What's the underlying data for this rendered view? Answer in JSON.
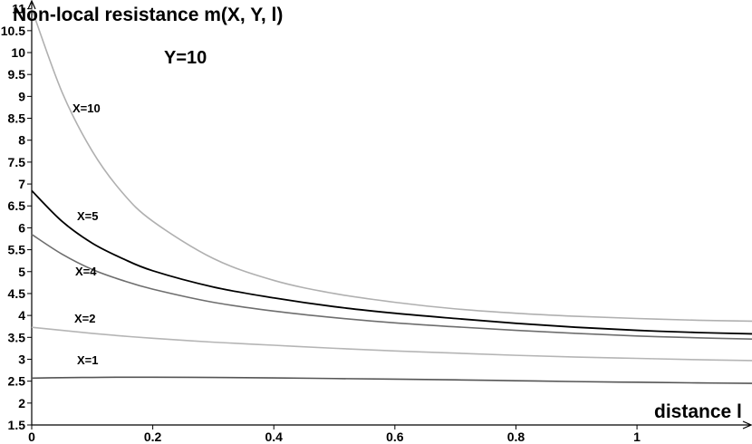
{
  "chart_data": {
    "type": "line",
    "title": "",
    "ylabel": "Non-local resistance m(X, Y, l)",
    "xlabel": "distance l",
    "annotation": "Y=10",
    "xlim": [
      0,
      1.19
    ],
    "ylim": [
      1.5,
      11.2
    ],
    "x_ticks": [
      0,
      0.2,
      0.4,
      0.6,
      0.8,
      1
    ],
    "x_tick_labels": [
      "0",
      "0.2",
      "0.4",
      "0.6",
      "0.8",
      "1"
    ],
    "y_ticks": [
      1.5,
      2,
      2.5,
      3,
      3.5,
      4,
      4.5,
      5,
      5.5,
      6,
      6.5,
      7,
      7.5,
      8,
      8.5,
      9,
      9.5,
      10,
      10.5,
      11
    ],
    "y_tick_labels": [
      "1.5",
      "2",
      "2.5",
      "3",
      "3.5",
      "4",
      "4.5",
      "5",
      "5.5",
      "6",
      "6.5",
      "7",
      "7.5",
      "8",
      "8.5",
      "9",
      "9.5",
      "10",
      "10.5",
      "11"
    ],
    "grid": false,
    "x": [
      0,
      0.05,
      0.1,
      0.15,
      0.2,
      0.3,
      0.4,
      0.5,
      0.6,
      0.7,
      0.8,
      0.9,
      1.0,
      1.1,
      1.19
    ],
    "series": [
      {
        "name": "X=10",
        "color": "#b0b0b0",
        "values": [
          11.0,
          9.1,
          7.75,
          6.8,
          6.15,
          5.3,
          4.8,
          4.5,
          4.3,
          4.15,
          4.05,
          3.98,
          3.93,
          3.89,
          3.87
        ]
      },
      {
        "name": "X=5",
        "color": "#000000",
        "values": [
          6.85,
          6.15,
          5.65,
          5.3,
          5.02,
          4.65,
          4.4,
          4.2,
          4.05,
          3.93,
          3.82,
          3.73,
          3.66,
          3.61,
          3.58
        ]
      },
      {
        "name": "X=4",
        "color": "#6e6e6e",
        "values": [
          5.85,
          5.4,
          5.05,
          4.8,
          4.6,
          4.3,
          4.1,
          3.95,
          3.83,
          3.74,
          3.66,
          3.59,
          3.53,
          3.49,
          3.46
        ]
      },
      {
        "name": "X=2",
        "color": "#b5b5b5",
        "values": [
          3.73,
          3.66,
          3.59,
          3.53,
          3.48,
          3.39,
          3.32,
          3.25,
          3.19,
          3.14,
          3.09,
          3.05,
          3.02,
          2.99,
          2.97
        ]
      },
      {
        "name": "X=1",
        "color": "#555555",
        "values": [
          2.57,
          2.58,
          2.585,
          2.59,
          2.59,
          2.585,
          2.575,
          2.56,
          2.545,
          2.53,
          2.51,
          2.49,
          2.475,
          2.46,
          2.45
        ]
      }
    ]
  }
}
